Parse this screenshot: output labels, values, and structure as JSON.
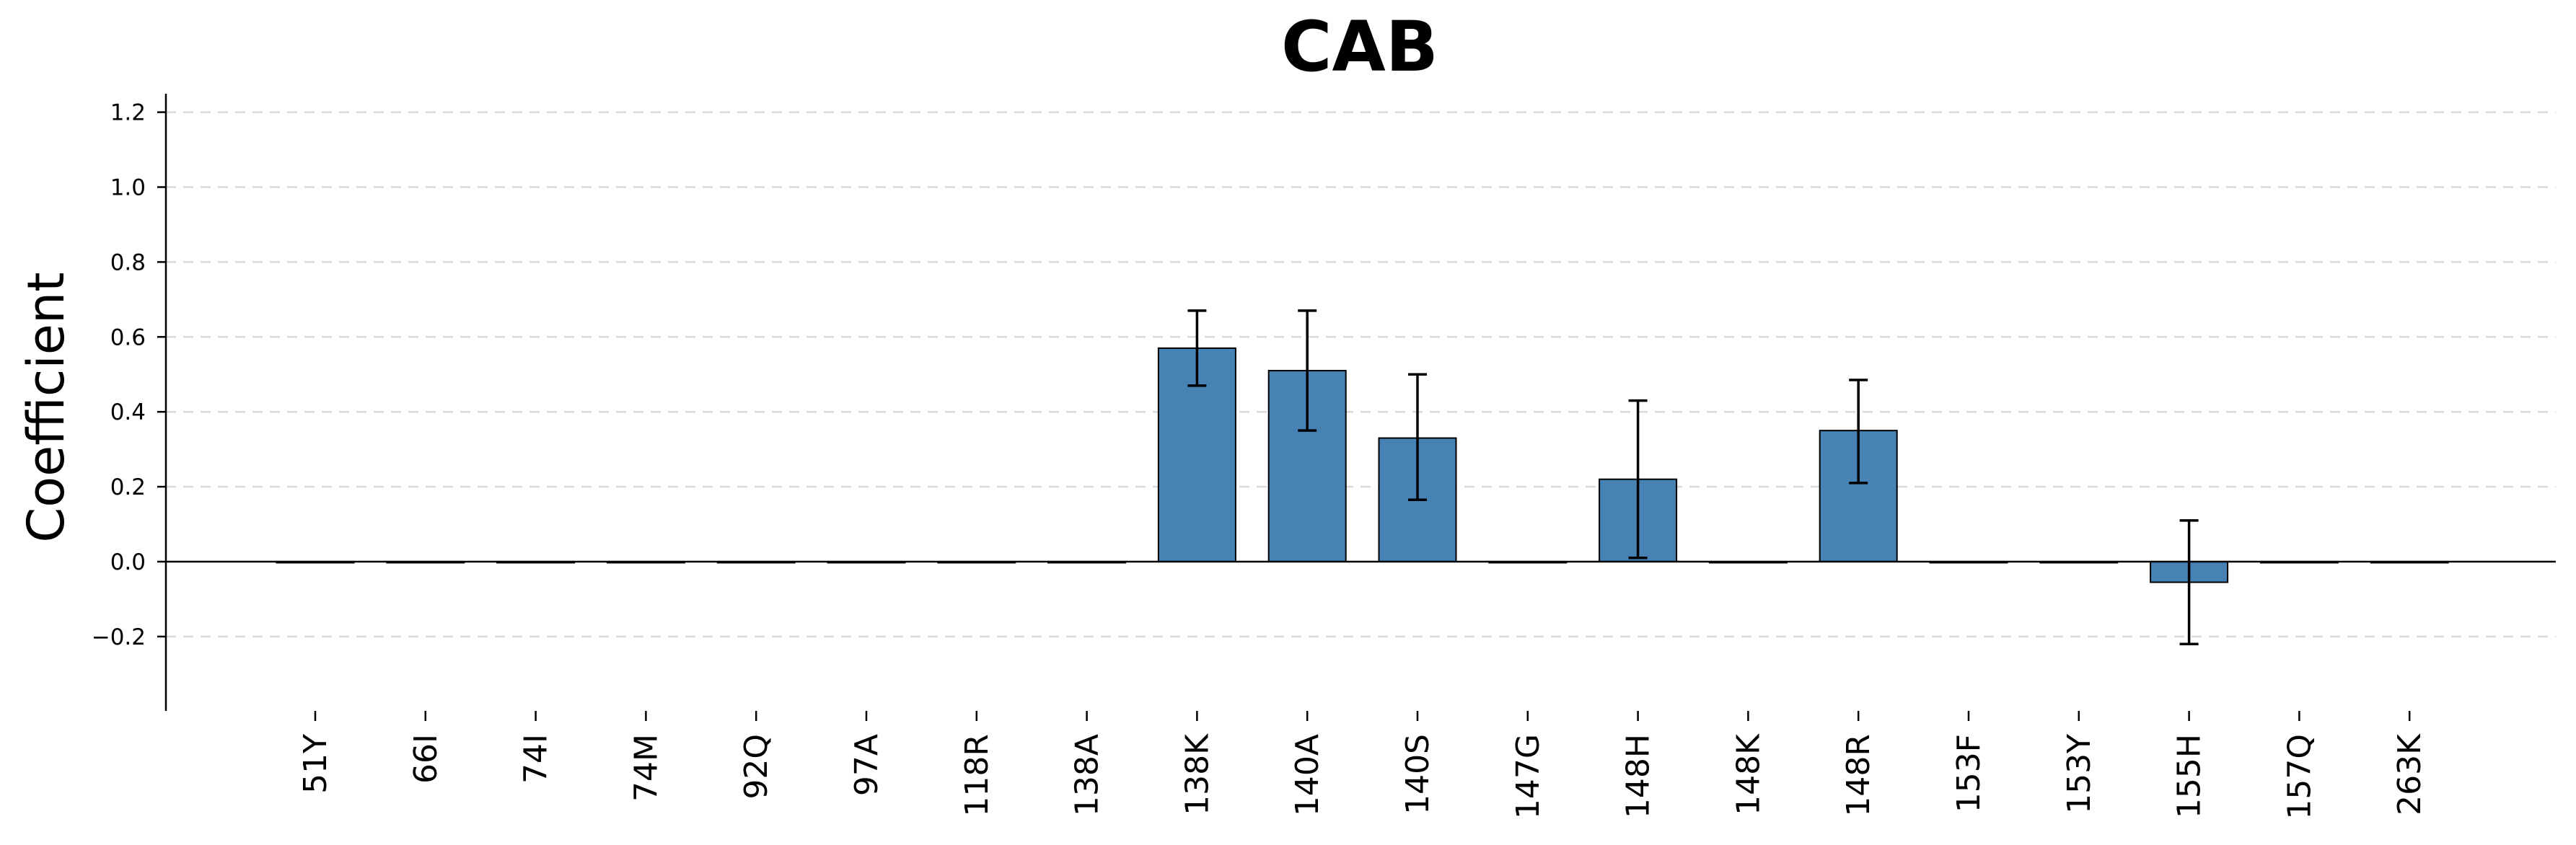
{
  "chart_data": {
    "type": "bar",
    "title": "CAB",
    "xlabel": "",
    "ylabel": "Coefficient",
    "categories": [
      "51Y",
      "66I",
      "74I",
      "74M",
      "92Q",
      "97A",
      "118R",
      "138A",
      "138K",
      "140A",
      "140S",
      "147G",
      "148H",
      "148K",
      "148R",
      "153F",
      "153Y",
      "155H",
      "157Q",
      "263K"
    ],
    "series": [
      {
        "values": [
          0,
          0,
          0,
          0,
          0,
          0,
          0,
          0,
          0.57,
          0.51,
          0.33,
          0,
          0.22,
          0,
          0.35,
          0,
          0,
          -0.055,
          0,
          0
        ],
        "error_low": [
          null,
          null,
          null,
          null,
          null,
          null,
          null,
          null,
          0.47,
          0.35,
          0.165,
          null,
          0.01,
          null,
          0.21,
          null,
          null,
          -0.22,
          null,
          null
        ],
        "error_high": [
          null,
          null,
          null,
          null,
          null,
          null,
          null,
          null,
          0.67,
          0.67,
          0.5,
          null,
          0.43,
          null,
          0.485,
          null,
          null,
          0.11,
          null,
          null
        ]
      }
    ],
    "yticks": [
      "−0.2",
      "0.0",
      "0.2",
      "0.4",
      "0.6",
      "0.8",
      "1.0",
      "1.2"
    ],
    "ytick_values": [
      -0.2,
      0.0,
      0.2,
      0.4,
      0.6,
      0.8,
      1.0,
      1.2
    ],
    "ylim": [
      -0.4,
      1.25
    ],
    "grid": "horizontal-dashed",
    "legend": "none",
    "colors": {
      "bar": "#4682b4",
      "bar_edge": "#000000",
      "error_bar": "#000000",
      "grid": "#d9d9d9",
      "axis": "#000000"
    }
  }
}
